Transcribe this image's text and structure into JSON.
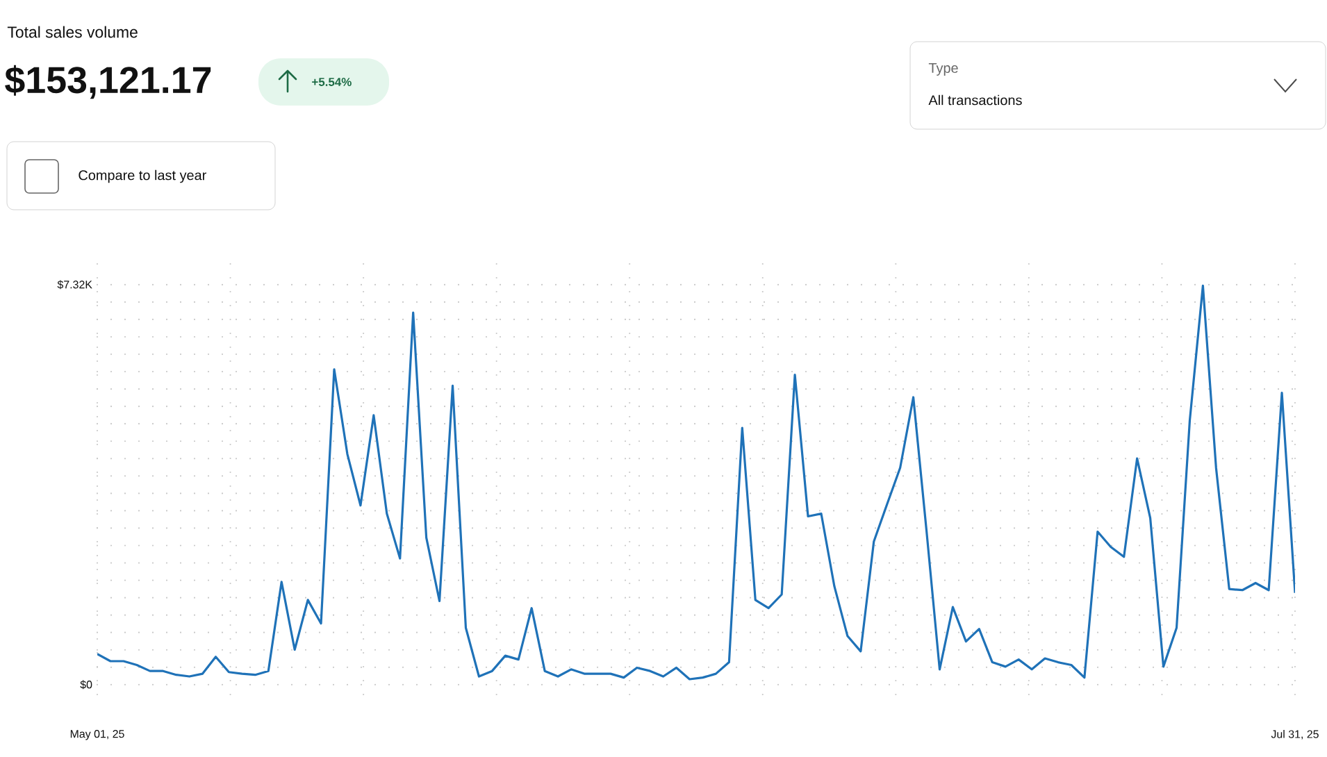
{
  "chart_data": {
    "type": "line",
    "title": "Total sales volume",
    "subtitle": "$153,121.17",
    "annotations": [
      "+5.54%",
      "Compare to last year",
      "Type",
      "All transactions"
    ],
    "x": [
      "2025-05-01",
      "2025-05-02",
      "2025-05-03",
      "2025-05-04",
      "2025-05-05",
      "2025-05-06",
      "2025-05-07",
      "2025-05-08",
      "2025-05-09",
      "2025-05-10",
      "2025-05-11",
      "2025-05-12",
      "2025-05-13",
      "2025-05-14",
      "2025-05-15",
      "2025-05-16",
      "2025-05-17",
      "2025-05-18",
      "2025-05-19",
      "2025-05-20",
      "2025-05-21",
      "2025-05-22",
      "2025-05-23",
      "2025-05-24",
      "2025-05-25",
      "2025-05-26",
      "2025-05-27",
      "2025-05-28",
      "2025-05-29",
      "2025-05-30",
      "2025-05-31",
      "2025-06-01",
      "2025-06-02",
      "2025-06-03",
      "2025-06-04",
      "2025-06-05",
      "2025-06-06",
      "2025-06-07",
      "2025-06-08",
      "2025-06-09",
      "2025-06-10",
      "2025-06-11",
      "2025-06-12",
      "2025-06-13",
      "2025-06-14",
      "2025-06-15",
      "2025-06-16",
      "2025-06-17",
      "2025-06-18",
      "2025-06-19",
      "2025-06-20",
      "2025-06-21",
      "2025-06-22",
      "2025-06-23",
      "2025-06-24",
      "2025-06-25",
      "2025-06-26",
      "2025-06-27",
      "2025-06-28",
      "2025-06-29",
      "2025-06-30",
      "2025-07-01",
      "2025-07-02",
      "2025-07-03",
      "2025-07-04",
      "2025-07-05",
      "2025-07-06",
      "2025-07-07",
      "2025-07-08",
      "2025-07-09",
      "2025-07-10",
      "2025-07-11",
      "2025-07-12",
      "2025-07-13",
      "2025-07-14",
      "2025-07-15",
      "2025-07-16",
      "2025-07-17",
      "2025-07-18",
      "2025-07-19",
      "2025-07-20",
      "2025-07-21",
      "2025-07-22",
      "2025-07-23",
      "2025-07-24",
      "2025-07-25",
      "2025-07-26",
      "2025-07-27",
      "2025-07-28",
      "2025-07-29",
      "2025-07-30",
      "2025-07-31"
    ],
    "series": [
      {
        "color": "#1f72b8",
        "values": [
          560,
          430,
          430,
          360,
          250,
          250,
          180,
          150,
          200,
          510,
          230,
          200,
          180,
          250,
          1880,
          640,
          1550,
          1120,
          5770,
          4220,
          3280,
          4930,
          3130,
          2310,
          6810,
          2690,
          1530,
          5470,
          1040,
          150,
          250,
          530,
          460,
          1400,
          250,
          150,
          280,
          200,
          200,
          200,
          130,
          310,
          250,
          150,
          310,
          100,
          130,
          200,
          410,
          4700,
          1550,
          1400,
          1650,
          5670,
          3080,
          3130,
          1800,
          890,
          610,
          2620,
          3300,
          3970,
          5260,
          2820,
          280,
          1420,
          790,
          1020,
          410,
          330,
          460,
          280,
          480,
          410,
          360,
          130,
          2800,
          2520,
          2340,
          4140,
          3050,
          330,
          1040,
          4830,
          7300,
          3970,
          1750,
          1730,
          1860,
          1730,
          5340,
          1680
        ]
      }
    ],
    "xlim": [
      "2025-05-01",
      "2025-07-31"
    ],
    "xticks": [
      {
        "value": "2025-05-01",
        "label": "May 01, 25"
      },
      {
        "value": "2025-07-31",
        "label": "Jul 31, 25"
      }
    ],
    "ylim": [
      -180,
      7700
    ],
    "yticks": [
      {
        "value": 0,
        "label": "$0"
      },
      {
        "value": 7320,
        "label": "$7.32K"
      }
    ],
    "grid": true,
    "marker": "none",
    "line_style": "solid"
  }
}
